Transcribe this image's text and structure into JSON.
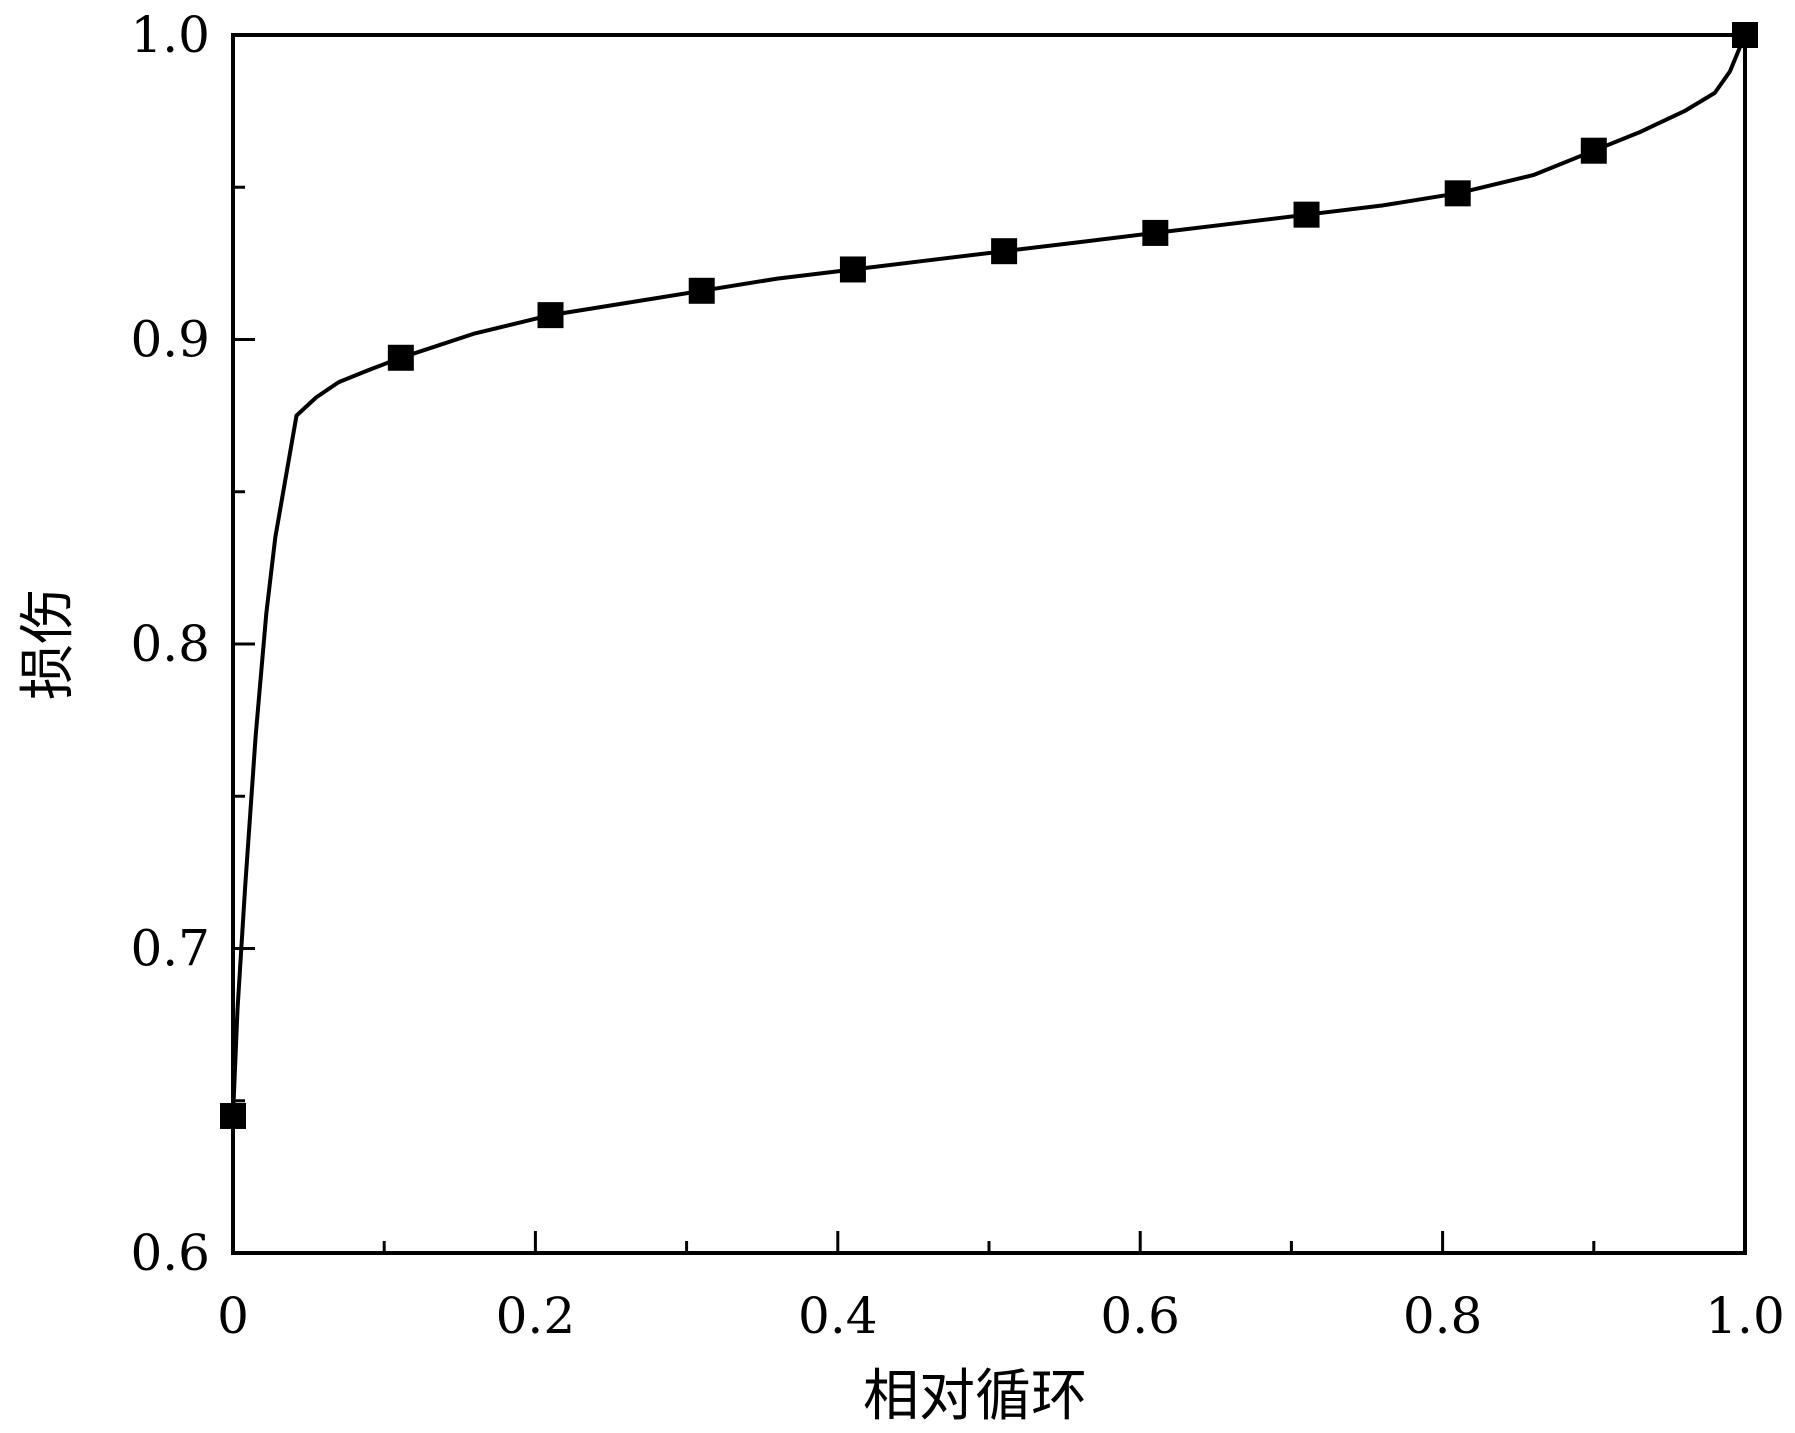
{
  "chart_data": {
    "type": "line",
    "title": "",
    "xlabel": "相对循环",
    "ylabel": "损伤",
    "xlim": [
      0,
      1.0
    ],
    "ylim": [
      0.6,
      1.0
    ],
    "grid": false,
    "x_ticks": [
      0,
      0.2,
      0.4,
      0.6,
      0.8,
      1.0
    ],
    "x_tick_labels": [
      "0",
      "0.2",
      "0.4",
      "0.6",
      "0.8",
      "1.0"
    ],
    "y_ticks": [
      0.6,
      0.7,
      0.8,
      0.9,
      1.0
    ],
    "y_tick_labels": [
      "0.6",
      "0.7",
      "0.8",
      "0.9",
      "1.0"
    ],
    "series": [
      {
        "line_color": "#000000",
        "marker": "square",
        "curve": {
          "x": [
            0.0,
            0.003,
            0.008,
            0.015,
            0.022,
            0.028,
            0.035,
            0.042,
            0.055,
            0.07,
            0.09,
            0.111,
            0.16,
            0.21,
            0.26,
            0.31,
            0.36,
            0.41,
            0.46,
            0.51,
            0.56,
            0.61,
            0.66,
            0.71,
            0.76,
            0.81,
            0.86,
            0.9,
            0.93,
            0.96,
            0.98,
            0.99,
            1.0
          ],
          "y": [
            0.645,
            0.68,
            0.72,
            0.77,
            0.81,
            0.835,
            0.855,
            0.875,
            0.881,
            0.886,
            0.89,
            0.894,
            0.902,
            0.908,
            0.912,
            0.916,
            0.92,
            0.923,
            0.926,
            0.929,
            0.932,
            0.935,
            0.938,
            0.941,
            0.944,
            0.948,
            0.954,
            0.962,
            0.968,
            0.975,
            0.981,
            0.988,
            1.0
          ]
        },
        "markers": {
          "x": [
            0.0,
            0.111,
            0.21,
            0.31,
            0.41,
            0.51,
            0.61,
            0.71,
            0.81,
            0.9,
            1.0
          ],
          "y": [
            0.645,
            0.894,
            0.908,
            0.916,
            0.923,
            0.929,
            0.935,
            0.941,
            0.948,
            0.962,
            1.0
          ]
        }
      }
    ]
  }
}
